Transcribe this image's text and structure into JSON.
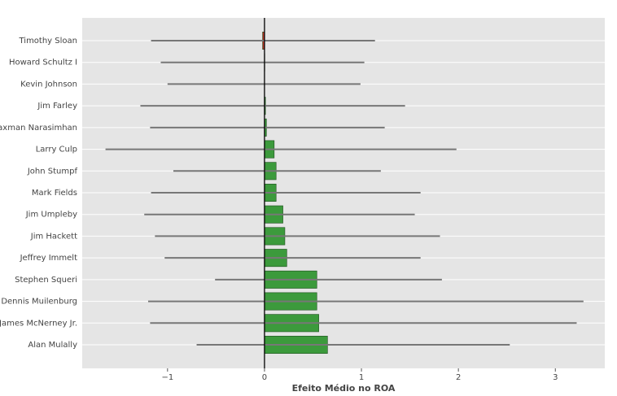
{
  "chart_data": {
    "type": "barh",
    "xlabel": "Efeito Médio no ROA",
    "categories": [
      "Timothy Sloan",
      "Howard Schultz I",
      "Kevin Johnson",
      "Jim Farley",
      "Laxman Narasimhan",
      "Larry Culp",
      "John Stumpf",
      "Mark Fields",
      "Jim Umpleby",
      "Jim Hackett",
      "Jeffrey Immelt",
      "Stephen Squeri",
      "Dennis Muilenburg",
      "W. James McNerney Jr.",
      "Alan Mulally"
    ],
    "values": [
      -0.02,
      0.003,
      0.002,
      0.01,
      0.02,
      0.1,
      0.12,
      0.12,
      0.19,
      0.21,
      0.23,
      0.54,
      0.54,
      0.56,
      0.65
    ],
    "ci_low": [
      -1.17,
      -1.07,
      -1.0,
      -1.28,
      -1.18,
      -1.64,
      -0.94,
      -1.17,
      -1.24,
      -1.13,
      -1.03,
      -0.51,
      -1.2,
      -1.18,
      -0.7
    ],
    "ci_high": [
      1.14,
      1.03,
      0.99,
      1.45,
      1.24,
      1.98,
      1.2,
      1.61,
      1.55,
      1.81,
      1.61,
      1.83,
      3.29,
      3.22,
      2.53
    ],
    "colors": {
      "positive": "#3c9a3c",
      "negative": "#c0392b",
      "error": "#777777"
    },
    "xlim": [
      -1.88,
      3.51
    ],
    "xticks": [
      {
        "value": -1,
        "label": "−1"
      },
      0,
      1,
      2,
      3
    ],
    "grid": true
  }
}
